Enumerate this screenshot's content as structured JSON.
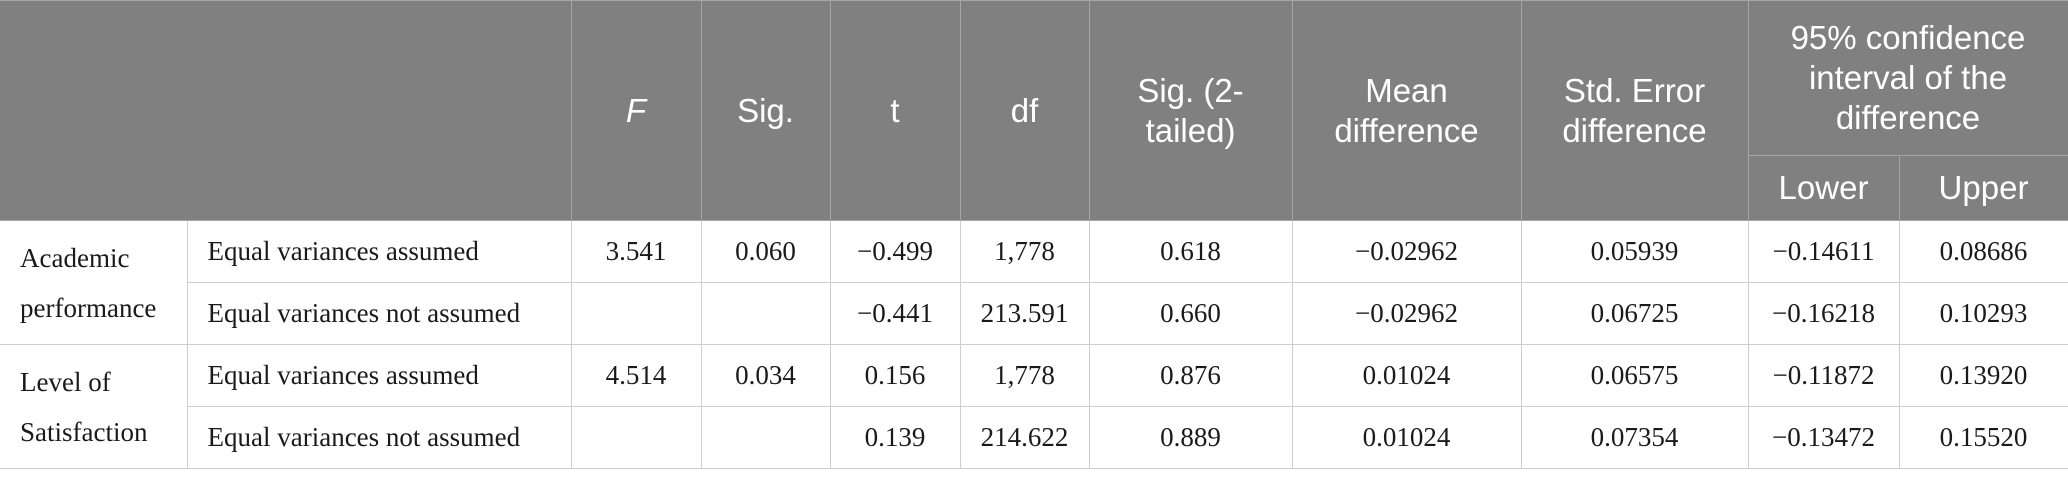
{
  "header": {
    "corner": "",
    "columns": [
      "F",
      "Sig.",
      "t",
      "df",
      "Sig. (2-tailed)",
      "Mean difference",
      "Std. Error difference"
    ],
    "ci_title": "95% confidence interval of the difference",
    "ci_sub": [
      "Lower",
      "Upper"
    ]
  },
  "groups": [
    {
      "name": "Academic performance",
      "rows": [
        {
          "label": "Equal variances assumed",
          "F": "3.541",
          "sig": "0.060",
          "t": "−0.499",
          "df": "1,778",
          "sig2": "0.618",
          "mean_diff": "−0.02962",
          "se_diff": "0.05939",
          "lower": "−0.14611",
          "upper": "0.08686"
        },
        {
          "label": "Equal variances not assumed",
          "F": "",
          "sig": "",
          "t": "−0.441",
          "df": "213.591",
          "sig2": "0.660",
          "mean_diff": "−0.02962",
          "se_diff": "0.06725",
          "lower": "−0.16218",
          "upper": "0.10293"
        }
      ]
    },
    {
      "name": "Level of Satisfaction",
      "rows": [
        {
          "label": "Equal variances assumed",
          "F": "4.514",
          "sig": "0.034",
          "t": "0.156",
          "df": "1,778",
          "sig2": "0.876",
          "mean_diff": "0.01024",
          "se_diff": "0.06575",
          "lower": "−0.11872",
          "upper": "0.13920"
        },
        {
          "label": "Equal variances not assumed",
          "F": "",
          "sig": "",
          "t": "0.139",
          "df": "214.622",
          "sig2": "0.889",
          "mean_diff": "0.01024",
          "se_diff": "0.07354",
          "lower": "−0.13472",
          "upper": "0.15520"
        }
      ]
    }
  ]
}
